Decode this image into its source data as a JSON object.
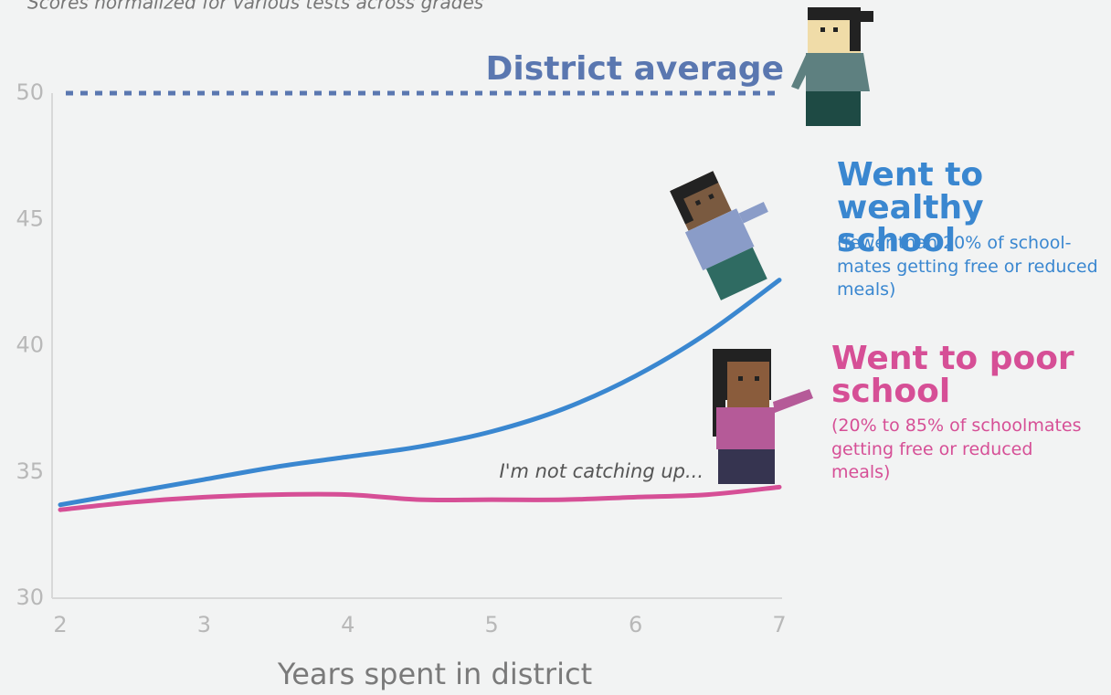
{
  "chart_data": {
    "type": "line",
    "subtitle": "Scores normalized for various tests across grades",
    "x_label": "Years spent in district",
    "annotation": "I'm not catching up...",
    "x": [
      2,
      2.5,
      3,
      3.5,
      4,
      4.5,
      5,
      5.5,
      6,
      6.5,
      7
    ],
    "series": [
      {
        "name": "Went to wealthy school",
        "note": "(fewer than 20% of school-mates getting free or reduced meals)",
        "color": "#3a87d0",
        "values": [
          33.7,
          34.2,
          34.7,
          35.2,
          35.6,
          36.0,
          36.6,
          37.5,
          38.8,
          40.5,
          42.6
        ]
      },
      {
        "name": "Went to poor school",
        "note": "(20% to 85% of schoolmates getting free or reduced meals)",
        "color": "#d64f96",
        "values": [
          33.5,
          33.8,
          34.0,
          34.1,
          34.1,
          33.9,
          33.9,
          33.9,
          34.0,
          34.1,
          34.4
        ]
      }
    ],
    "reference_line": {
      "value": 50,
      "label": "District average",
      "color": "#5a77b0"
    },
    "xlim": [
      2,
      7
    ],
    "xticks": [
      2,
      3,
      4,
      5,
      6,
      7
    ],
    "ylim": [
      30,
      50
    ],
    "yticks": [
      30,
      35,
      40,
      45,
      50
    ]
  }
}
